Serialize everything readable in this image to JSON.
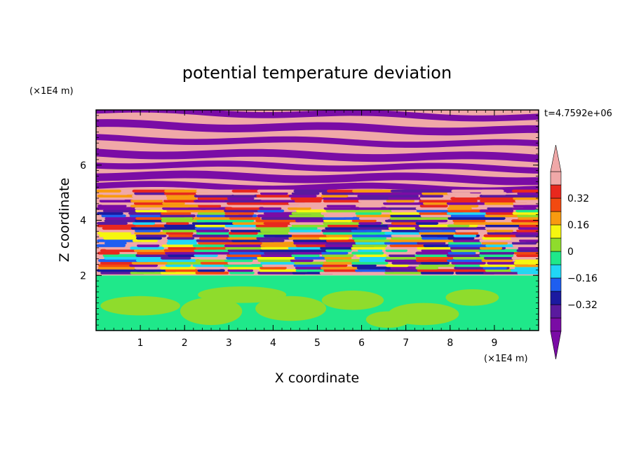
{
  "chart_data": {
    "type": "heatmap",
    "title": "potential temperature deviation",
    "xlabel": "X coordinate",
    "ylabel": "Z coordinate",
    "x_unit": "(×1E4 m)",
    "y_unit": "(×1E4 m)",
    "time_label": "t=4.7592e+06",
    "xlim": [
      0,
      10
    ],
    "ylim": [
      0,
      8
    ],
    "x_ticks": [
      "1",
      "2",
      "3",
      "4",
      "5",
      "6",
      "7",
      "8",
      "9"
    ],
    "y_ticks": [
      "2",
      "4",
      "6"
    ],
    "colorbar": {
      "levels": [
        -0.48,
        -0.4,
        -0.32,
        -0.24,
        -0.16,
        -0.08,
        0,
        0.08,
        0.16,
        0.24,
        0.32,
        0.4,
        0.48
      ],
      "colors": [
        "#7a0ca5",
        "#5a1a9e",
        "#1b1aa0",
        "#1e5ef0",
        "#21d6f6",
        "#1fe88a",
        "#8fdc2c",
        "#f6f610",
        "#f89a10",
        "#f24a10",
        "#e8281e",
        "#f0a8a8"
      ],
      "tick_labels": [
        "0.32",
        "0.16",
        "0",
        "−0.16",
        "−0.32"
      ],
      "tick_values": [
        0.32,
        0.16,
        0,
        -0.16,
        -0.32
      ],
      "extend": "both"
    },
    "regions": [
      {
        "z_range": [
          0,
          2
        ],
        "description": "mostly near-zero values (0 to 0.08) with embedded 0 to -0.08 patches"
      },
      {
        "z_range": [
          2,
          5
        ],
        "description": "turbulent mixed layer spanning full colour range"
      },
      {
        "z_range": [
          5,
          8
        ],
        "description": "alternating horizontal bands near +0.48 and -0.48"
      }
    ]
  }
}
